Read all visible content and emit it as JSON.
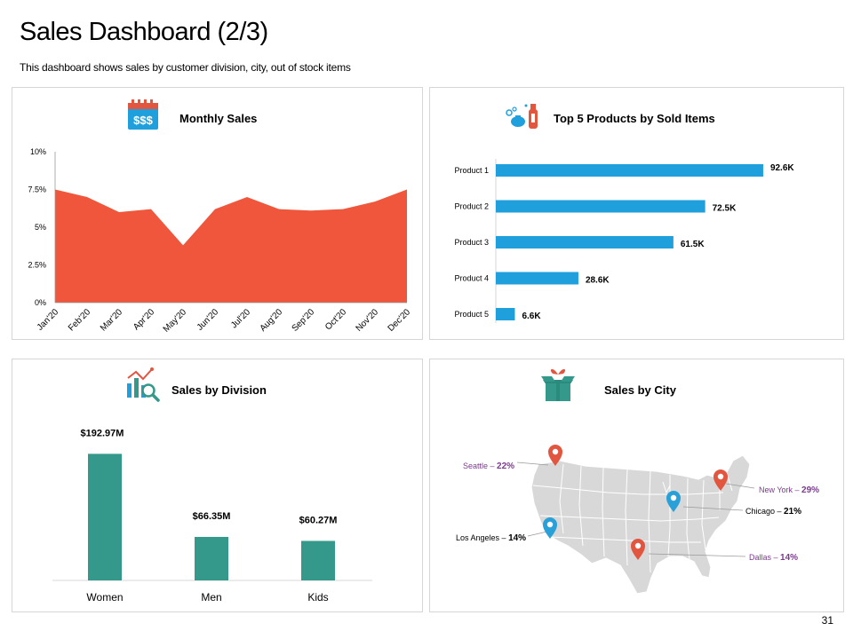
{
  "page": {
    "title": "Sales Dashboard (2/3)",
    "subtitle": "This dashboard shows sales by customer division, city, out of stock items",
    "page_number": "31"
  },
  "colors": {
    "area": "#ef563b",
    "bar_blue": "#1f9fdb",
    "bar_teal": "#34998a",
    "city_label": "#7b3b8c",
    "map_fill": "#d8d8d8",
    "pin_red": "#e2553f",
    "pin_blue": "#2aa0d8"
  },
  "panels": {
    "monthly": {
      "title": "Monthly Sales",
      "icon": "calendar-dollar-icon",
      "icon_text": "$$$"
    },
    "products": {
      "title": "Top 5 Products by Sold Items",
      "icon": "cleaning-products-icon"
    },
    "division": {
      "title": "Sales by Division",
      "icon": "chart-magnifier-icon"
    },
    "city": {
      "title": "Sales by City",
      "icon": "gift-box-icon"
    }
  },
  "chart_data": [
    {
      "id": "monthly-sales",
      "type": "area",
      "title": "Monthly Sales",
      "categories": [
        "Jan'20",
        "Feb'20",
        "Mar'20",
        "Apr'20",
        "May'20",
        "Jun'20",
        "Jul'20",
        "Aug'20",
        "Sep'20",
        "Oct'20",
        "Nov'20",
        "Dec'20"
      ],
      "values": [
        7.5,
        7.0,
        6.0,
        6.2,
        3.8,
        6.2,
        7.0,
        6.2,
        6.1,
        6.2,
        6.7,
        7.5
      ],
      "ylim": [
        0,
        10
      ],
      "yticks": [
        "0%",
        "2.5%",
        "5%",
        "7.5%",
        "10%"
      ],
      "ytick_values": [
        0,
        2.5,
        5,
        7.5,
        10
      ]
    },
    {
      "id": "top-products",
      "type": "bar",
      "orientation": "horizontal",
      "title": "Top 5 Products by Sold Items",
      "categories": [
        "Product 1",
        "Product 2",
        "Product 3",
        "Product 4",
        "Product 5"
      ],
      "values": [
        92.6,
        72.5,
        61.5,
        28.6,
        6.6
      ],
      "labels": [
        "92.6K",
        "72.5K",
        "61.5K",
        "28.6K",
        "6.6K"
      ],
      "xlim": [
        0,
        100
      ]
    },
    {
      "id": "sales-division",
      "type": "bar",
      "title": "Sales by Division",
      "categories": [
        "Women",
        "Men",
        "Kids"
      ],
      "values": [
        192.97,
        66.35,
        60.27
      ],
      "labels": [
        "$192.97M",
        "$66.35M",
        "$60.27M"
      ],
      "ylim": [
        0,
        230
      ]
    },
    {
      "id": "sales-city",
      "type": "map",
      "title": "Sales by City",
      "cities": [
        {
          "name": "Seattle",
          "value": "22%",
          "pin": "red"
        },
        {
          "name": "New York",
          "value": "29%",
          "pin": "red"
        },
        {
          "name": "Chicago",
          "value": "21%",
          "pin": "blue"
        },
        {
          "name": "Los Angeles",
          "value": "14%",
          "pin": "blue"
        },
        {
          "name": "Dallas",
          "value": "14%",
          "pin": "red"
        }
      ]
    }
  ]
}
